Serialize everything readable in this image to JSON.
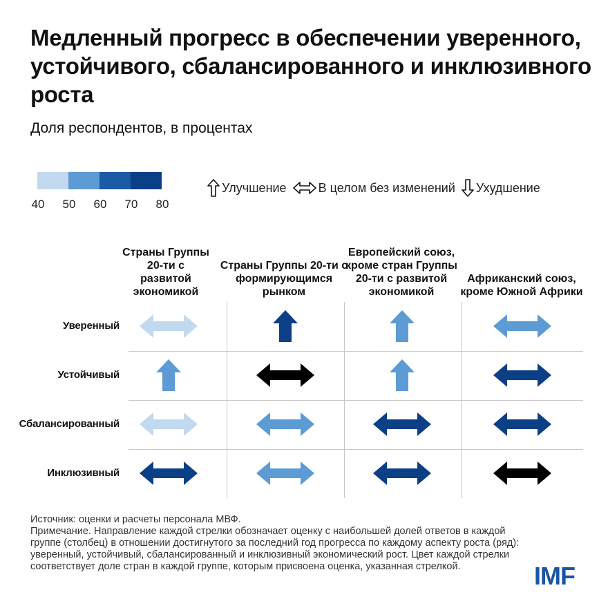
{
  "title": "Медленный прогресс в обеспечении уверенного, устойчивого, сбалансированного и инклюзивного роста",
  "subtitle": "Доля респондентов, в процентах",
  "color_scale": {
    "ticks": [
      "40",
      "50",
      "60",
      "70",
      "80"
    ],
    "colors": [
      "#c2d9ef",
      "#5c9bd3",
      "#1b5aa5",
      "#0b3f86",
      "#000000"
    ]
  },
  "legend": {
    "up": "Улучшение",
    "flat": "В целом без изменений",
    "down": "Ухудшение"
  },
  "chart_data": {
    "type": "table",
    "columns": [
      "Страны Группы 20-ти с развитой экономикой",
      "Страны Группы 20-ти с формирующимся рынком",
      "Европейский союз, кроме стран Группы 20-ти с развитой экономикой",
      "Африканский союз, кроме Южной Африки"
    ],
    "rows": [
      "Уверенный",
      "Устойчивый",
      "Сбалансированный",
      "Инклюзивный"
    ],
    "cells": [
      [
        {
          "direction": "flat",
          "share": 40
        },
        {
          "direction": "up",
          "share": 70
        },
        {
          "direction": "up",
          "share": 50
        },
        {
          "direction": "flat",
          "share": 50
        }
      ],
      [
        {
          "direction": "up",
          "share": 50
        },
        {
          "direction": "flat",
          "share": 80
        },
        {
          "direction": "up",
          "share": 50
        },
        {
          "direction": "flat",
          "share": 70
        }
      ],
      [
        {
          "direction": "flat",
          "share": 40
        },
        {
          "direction": "flat",
          "share": 50
        },
        {
          "direction": "flat",
          "share": 70
        },
        {
          "direction": "flat",
          "share": 70
        }
      ],
      [
        {
          "direction": "flat",
          "share": 70
        },
        {
          "direction": "flat",
          "share": 50
        },
        {
          "direction": "flat",
          "share": 70
        },
        {
          "direction": "flat",
          "share": 80
        }
      ]
    ]
  },
  "footer": {
    "source": "Источник: оценки и расчеты персонала МВФ.",
    "note": "Примечание. Направление каждой стрелки обозначает оценку с наибольшей долей ответов в каждой группе (столбец) в отношении достигнутого за последний год прогресса по каждому аспекту роста (ряд): уверенный, устойчивый, сбалансированный и инклюзивный экономический рост. Цвет каждой стрелки соответствует доле стран в каждой группе, которым присвоена оценка, указанная стрелкой."
  },
  "logo": "IMF"
}
